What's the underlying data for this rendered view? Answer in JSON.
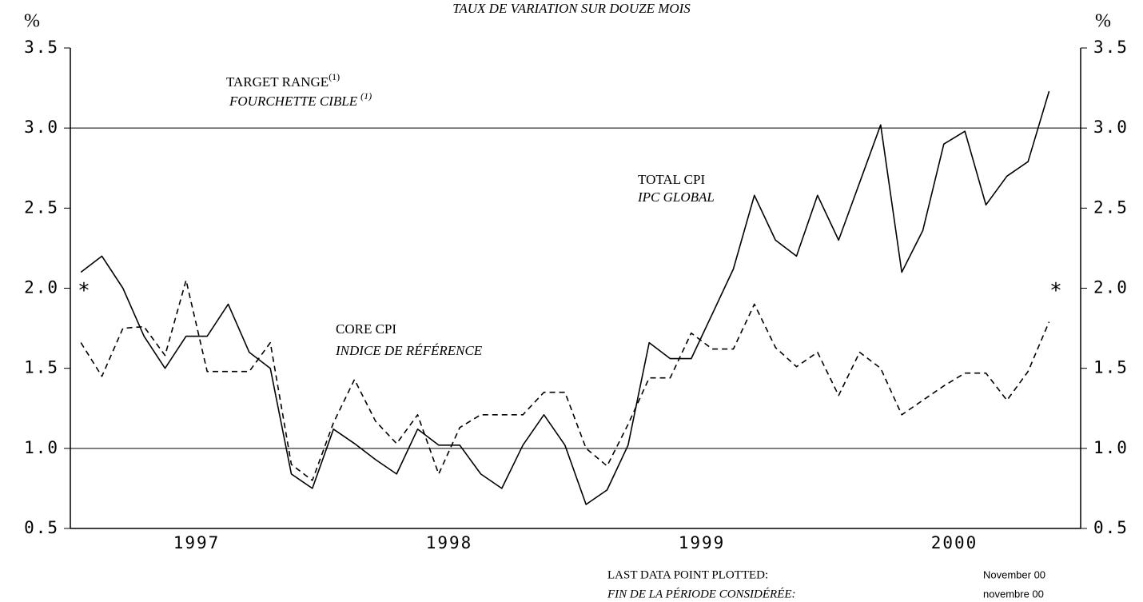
{
  "chart_data": {
    "type": "line",
    "title": "TAUX DE VARIATION SUR DOUZE MOIS",
    "y_unit": "%",
    "y2_unit": "%",
    "x": [
      1,
      2,
      3,
      4,
      5,
      6,
      7,
      8,
      9,
      10,
      11,
      12,
      13,
      14,
      15,
      16,
      17,
      18,
      19,
      20,
      21,
      22,
      23,
      24,
      25,
      26,
      27,
      28,
      29,
      30,
      31,
      32,
      33,
      34,
      35,
      36,
      37,
      38,
      39,
      40,
      41,
      42,
      43,
      44,
      45,
      46,
      47
    ],
    "xlim": [
      0.5,
      48.5
    ],
    "xticks": [
      {
        "value": 6.5,
        "label": "1997"
      },
      {
        "value": 18.5,
        "label": "1998"
      },
      {
        "value": 30.5,
        "label": "1999"
      },
      {
        "value": 42.5,
        "label": "2000"
      }
    ],
    "ylim": [
      0.5,
      3.5
    ],
    "yticks": [
      0.5,
      {
        "value": 1,
        "label": "1.0"
      },
      1.5,
      {
        "value": 2,
        "label": "2.0"
      },
      2.5,
      {
        "value": 3,
        "label": "3.0"
      },
      3.5
    ],
    "y2lim": [
      0.5,
      3.5
    ],
    "y2ticks": [
      0.5,
      {
        "value": 1,
        "label": "1.0"
      },
      1.5,
      {
        "value": 2,
        "label": "2.0"
      },
      2.5,
      {
        "value": 3,
        "label": "3.0"
      },
      3.5
    ],
    "target_range": [
      1,
      3
    ],
    "target_label": {
      "text": "TARGET RANGE",
      "note": "(1)"
    },
    "target_label_fr": {
      "text": "FOURCHETTE CIBLE",
      "note": "(1)"
    },
    "markers": {
      "text": "*",
      "value": 2
    },
    "series": [
      {
        "name": "TOTAL CPI",
        "name_fr": "IPC GLOBAL",
        "color": "#000000",
        "line_style": "solid",
        "values": [
          2.1,
          2.2,
          2.0,
          1.7,
          1.5,
          1.7,
          1.7,
          1.9,
          1.6,
          1.5,
          0.84,
          0.75,
          1.12,
          1.03,
          0.93,
          0.84,
          1.12,
          1.02,
          1.02,
          0.84,
          0.75,
          1.02,
          1.21,
          1.02,
          0.65,
          0.74,
          1.02,
          1.66,
          1.56,
          1.56,
          1.84,
          2.12,
          2.58,
          2.3,
          2.2,
          2.58,
          2.3,
          2.66,
          3.02,
          2.1,
          2.36,
          2.9,
          2.98,
          2.52,
          2.7,
          2.79,
          3.23
        ]
      },
      {
        "name": "CORE CPI",
        "name_fr": "INDICE DE RÉFÉRENCE",
        "color": "#000000",
        "line_style": "dashed",
        "values": [
          1.66,
          1.45,
          1.75,
          1.76,
          1.58,
          2.05,
          1.48,
          1.48,
          1.48,
          1.66,
          0.9,
          0.8,
          1.16,
          1.43,
          1.17,
          1.03,
          1.21,
          0.84,
          1.13,
          1.21,
          1.21,
          1.21,
          1.35,
          1.35,
          1.0,
          0.89,
          1.15,
          1.44,
          1.44,
          1.72,
          1.62,
          1.62,
          1.9,
          1.63,
          1.51,
          1.6,
          1.33,
          1.6,
          1.5,
          1.21,
          1.3,
          1.39,
          1.47,
          1.47,
          1.3,
          1.48,
          1.79
        ]
      }
    ],
    "footer": {
      "label": "LAST DATA POINT PLOTTED:",
      "label_fr": "FIN DE LA PÉRIODE CONSIDÉRÉE:",
      "value": "November 00",
      "value_fr": "novembre 00"
    }
  }
}
